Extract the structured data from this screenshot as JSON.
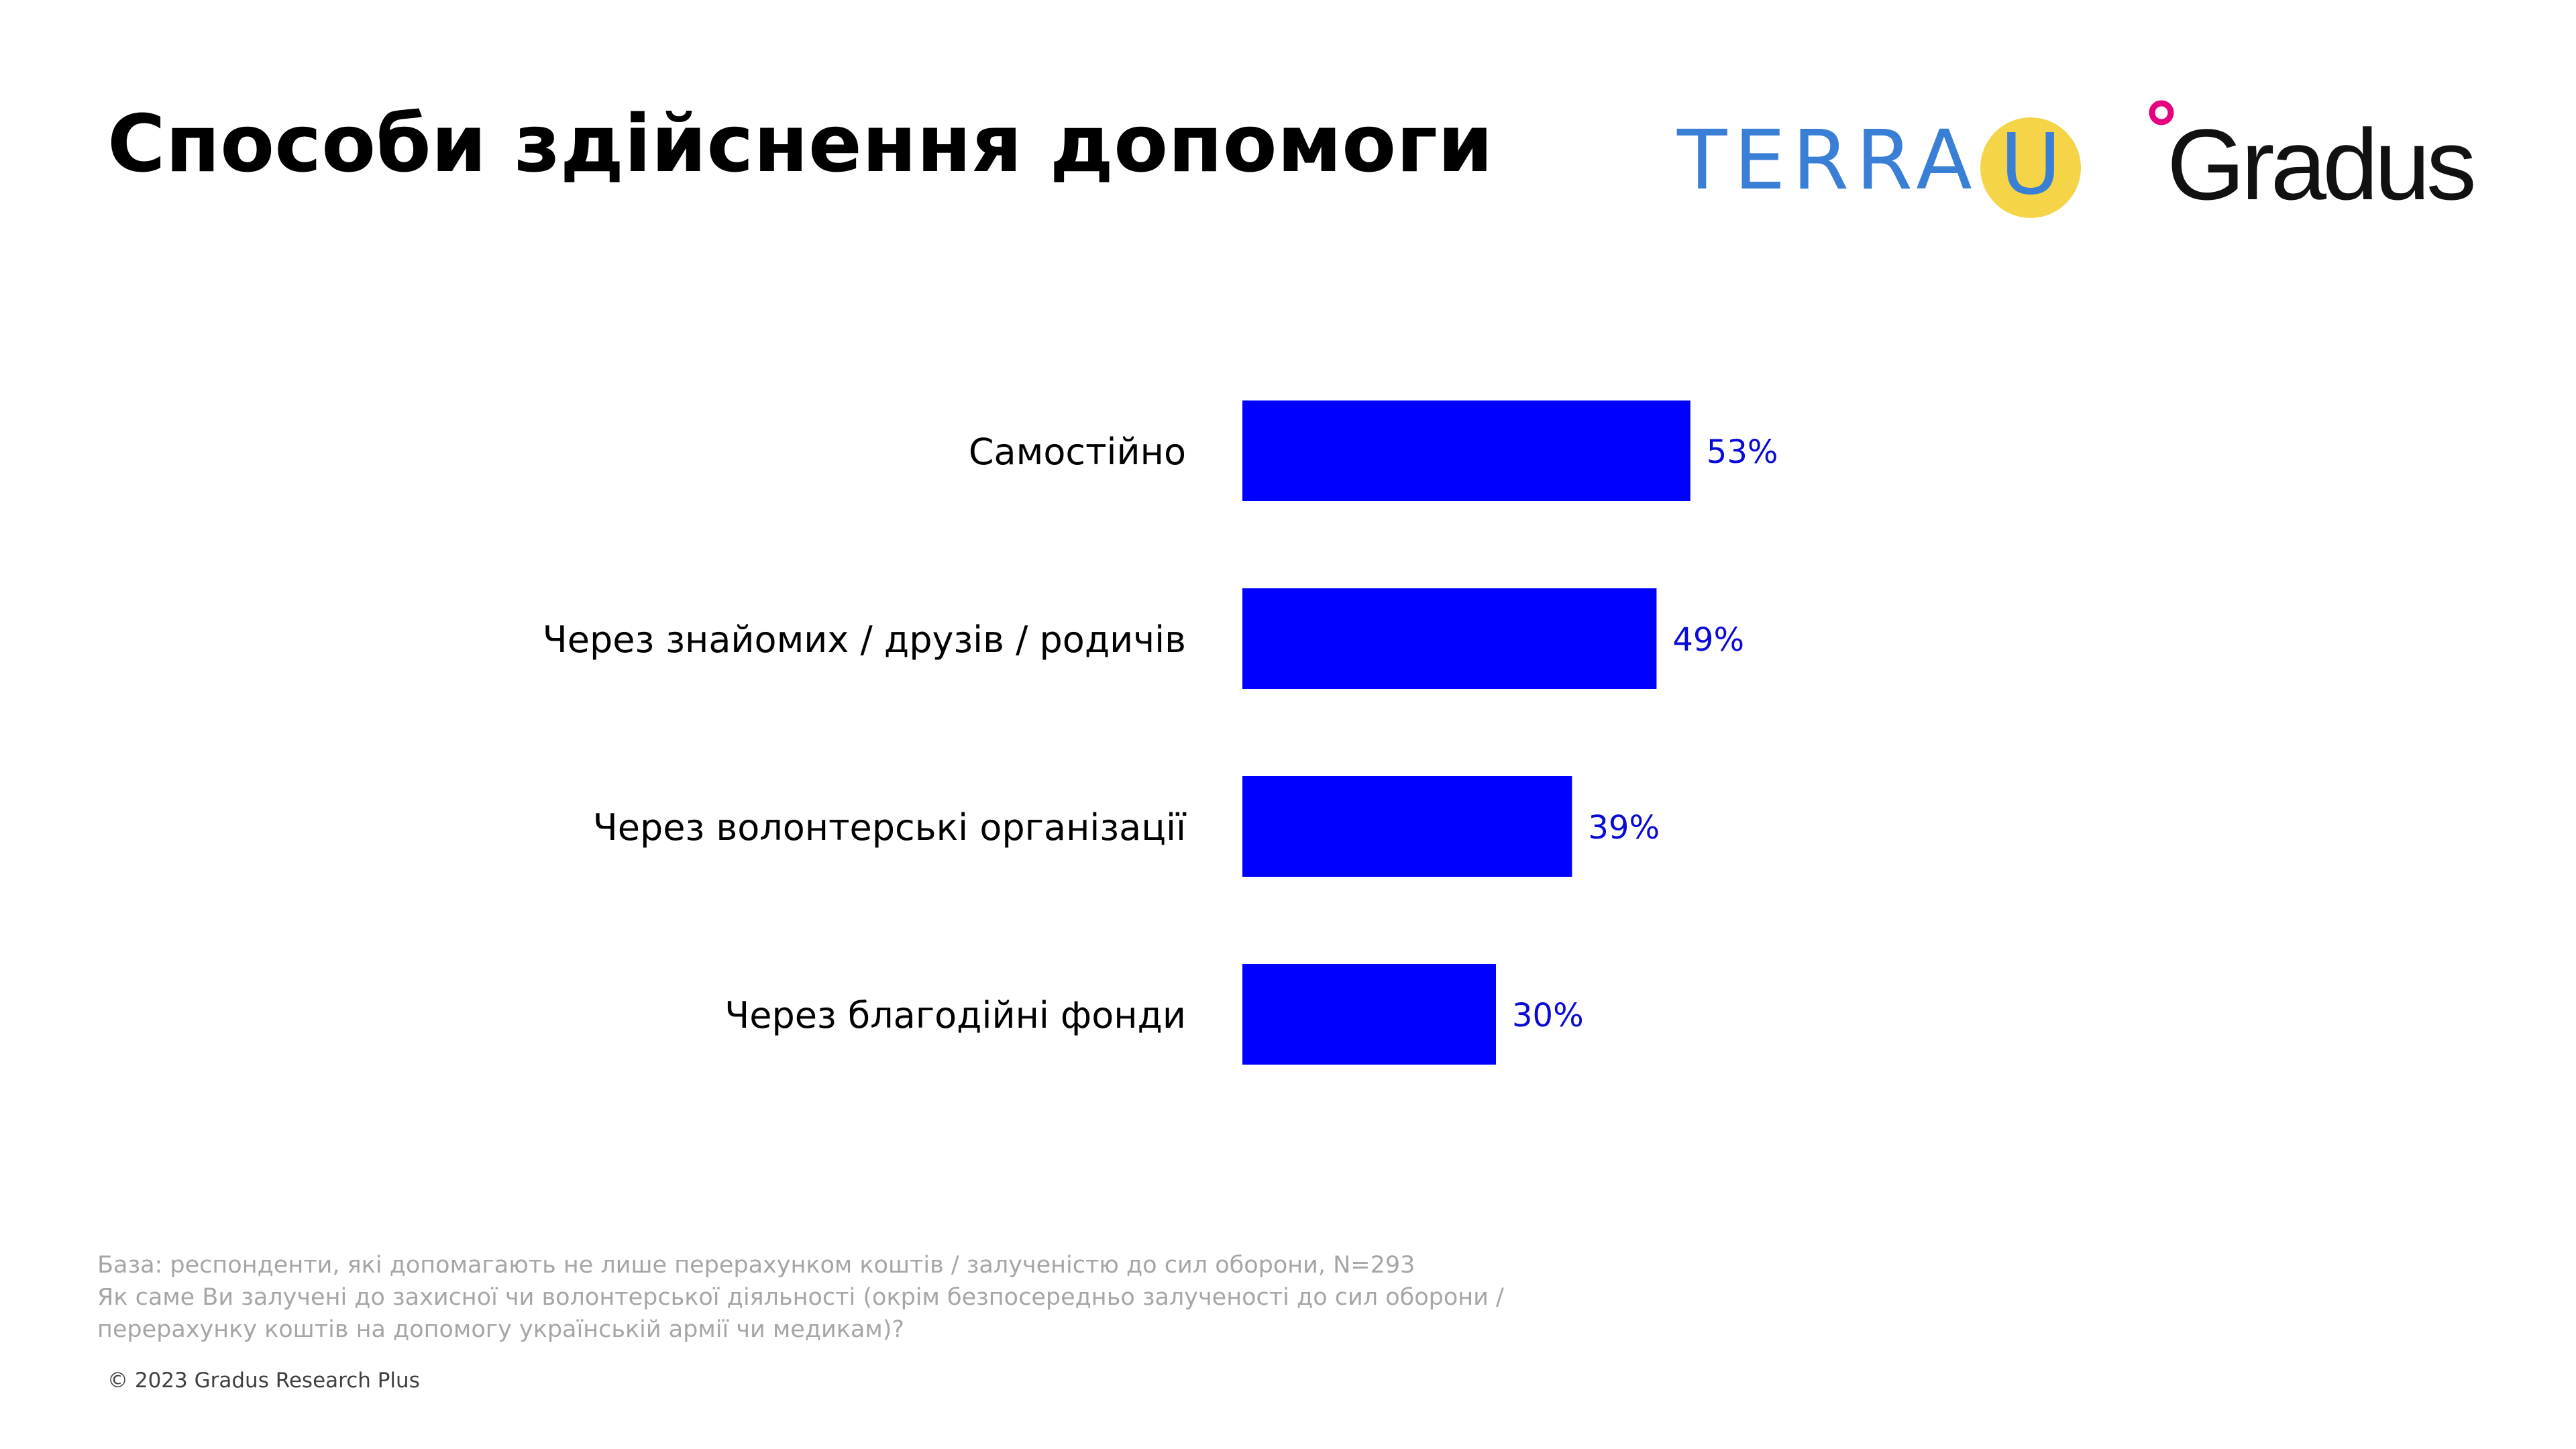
{
  "slide": {
    "title": "Способи здійснення допомоги"
  },
  "logos": {
    "terra": {
      "text": "TERRA",
      "letter": "U",
      "text_color": "#3a7fd6",
      "circle_color": "#f5d547"
    },
    "gradus": {
      "text": "Gradus",
      "text_color": "#111111",
      "dot_color": "#e6007e"
    }
  },
  "chart_data": {
    "type": "bar",
    "orientation": "horizontal",
    "categories": [
      "Самостійно",
      "Через знайомих / друзів / родичів",
      "Через волонтерські організації",
      "Через благодійні фонди"
    ],
    "values": [
      53,
      49,
      39,
      30
    ],
    "value_labels": [
      "53%",
      "49%",
      "39%",
      "30%"
    ],
    "unit": "%",
    "bar_color": "#0000ff",
    "label_color": "#0a0ad6",
    "grid": false,
    "legend": "none"
  },
  "footer": {
    "base_note": "База: респонденти, які допомагають не лише перерахунком коштів / залученістю до сил оборони, N=293",
    "question_line1": "Як саме Ви залучені до захисної чи волонтерської діяльності (окрім безпосередньо залученості до сил оборони /",
    "question_line2": "перерахунку коштів на допомогу українській армії чи медикам)?",
    "copyright": "© 2023 Gradus Research Plus"
  }
}
